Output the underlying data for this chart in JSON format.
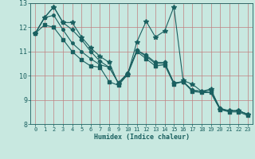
{
  "xlabel": "Humidex (Indice chaleur)",
  "background_color": "#c8e8e0",
  "grid_color": "#c08080",
  "line_color": "#1a6060",
  "xlim": [
    -0.5,
    23.5
  ],
  "ylim": [
    8.0,
    13.0
  ],
  "yticks": [
    8,
    9,
    10,
    11,
    12,
    13
  ],
  "xticks": [
    0,
    1,
    2,
    3,
    4,
    5,
    6,
    7,
    8,
    9,
    10,
    11,
    12,
    13,
    14,
    15,
    16,
    17,
    18,
    19,
    20,
    21,
    22,
    23
  ],
  "series": [
    [
      11.75,
      12.4,
      12.85,
      12.2,
      12.2,
      11.6,
      11.15,
      10.8,
      10.55,
      9.65,
      10.05,
      11.4,
      12.25,
      11.6,
      11.85,
      12.85,
      9.8,
      9.65,
      9.35,
      9.45,
      8.6,
      8.55,
      8.55,
      8.4
    ],
    [
      11.75,
      12.4,
      12.85,
      12.2,
      11.9,
      11.5,
      11.0,
      10.6,
      10.35,
      9.7,
      10.1,
      11.05,
      10.85,
      10.55,
      10.55,
      9.7,
      9.75,
      9.4,
      9.35,
      9.4,
      8.65,
      8.55,
      8.55,
      8.4
    ],
    [
      11.75,
      12.4,
      12.5,
      11.9,
      11.35,
      11.0,
      10.7,
      10.45,
      10.35,
      9.7,
      10.1,
      11.05,
      10.8,
      10.5,
      10.5,
      9.7,
      9.75,
      9.4,
      9.35,
      9.3,
      8.6,
      8.55,
      8.55,
      8.4
    ],
    [
      11.75,
      12.1,
      12.0,
      11.5,
      11.0,
      10.65,
      10.4,
      10.35,
      9.75,
      9.6,
      10.05,
      11.0,
      10.7,
      10.4,
      10.45,
      9.65,
      9.75,
      9.35,
      9.3,
      9.3,
      8.6,
      8.5,
      8.5,
      8.35
    ]
  ],
  "markers": [
    "*",
    "D",
    "o",
    "s"
  ],
  "markersizes": [
    4.0,
    2.5,
    2.5,
    2.5
  ]
}
